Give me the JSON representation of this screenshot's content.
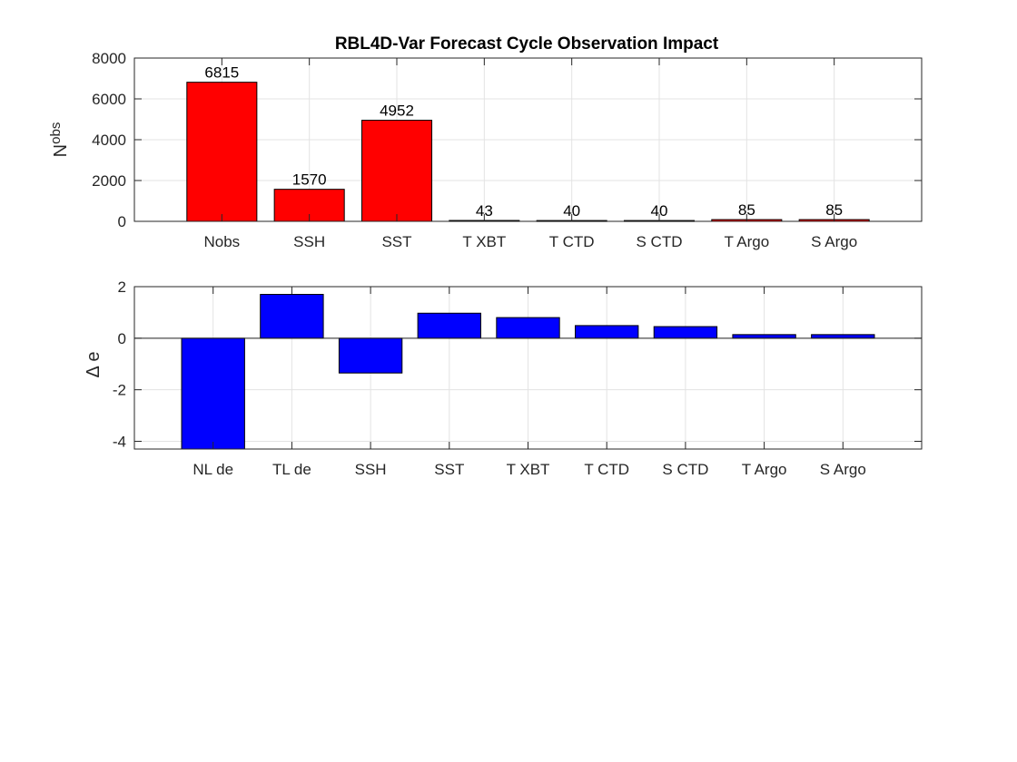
{
  "chart_data": [
    {
      "type": "bar",
      "title": "RBL4D-Var Forecast Cycle Observation Impact",
      "ylabel": "N",
      "ylabel_subscript": "obs",
      "xlabel": "",
      "categories": [
        "Nobs",
        "SSH",
        "SST",
        "T XBT",
        "T CTD",
        "S CTD",
        "T Argo",
        "S Argo"
      ],
      "values": [
        6815,
        1570,
        4952,
        43,
        40,
        40,
        85,
        85
      ],
      "data_labels": [
        "6815",
        "1570",
        "4952",
        "43",
        "40",
        "40",
        "85",
        "85"
      ],
      "ylim": [
        0,
        8000
      ],
      "yticks": [
        0,
        2000,
        4000,
        6000,
        8000
      ],
      "ytick_labels": [
        "0",
        "2000",
        "4000",
        "6000",
        "8000"
      ],
      "grid": true,
      "bar_color": "#ff0000"
    },
    {
      "type": "bar",
      "title": "",
      "ylabel": "Δ e",
      "xlabel": "",
      "categories": [
        "NL de",
        "TL de",
        "SSH",
        "SST",
        "T XBT",
        "T CTD",
        "S CTD",
        "T Argo",
        "S Argo"
      ],
      "values": [
        -4.3,
        1.7,
        -1.35,
        0.97,
        0.8,
        0.49,
        0.45,
        0.14,
        0.14
      ],
      "ylim": [
        -4.3,
        2
      ],
      "yticks": [
        -4,
        -2,
        0,
        2
      ],
      "ytick_labels": [
        "-4",
        "-2",
        "0",
        "2"
      ],
      "grid": true,
      "bar_color": "#0000ff"
    }
  ]
}
